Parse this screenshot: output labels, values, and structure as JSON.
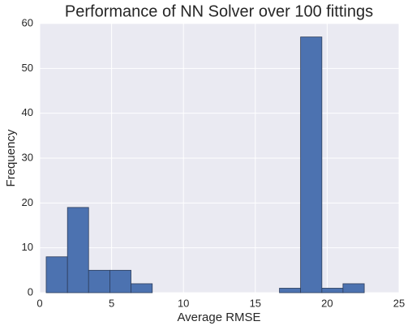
{
  "chart_data": {
    "type": "histogram",
    "title": "Performance of NN Solver over 100 fittings",
    "x_label": "Average RMSE",
    "y_label": "Frequency",
    "bins": [
      0.45,
      1.93,
      3.4,
      4.88,
      6.35,
      7.83,
      9.3,
      10.78,
      12.25,
      13.73,
      15.2,
      16.68,
      18.15,
      19.63,
      21.1,
      22.58
    ],
    "values": [
      8,
      19,
      5,
      5,
      2,
      0,
      0,
      0,
      0,
      0,
      0,
      1,
      57,
      1,
      2
    ],
    "color": "#4c72b0",
    "xlim": [
      0,
      25
    ],
    "xticks": [
      0,
      5,
      10,
      15,
      20,
      25
    ],
    "ylim": [
      0,
      60
    ],
    "yticks": [
      0,
      10,
      20,
      30,
      40,
      50,
      60
    ],
    "grid": true
  }
}
